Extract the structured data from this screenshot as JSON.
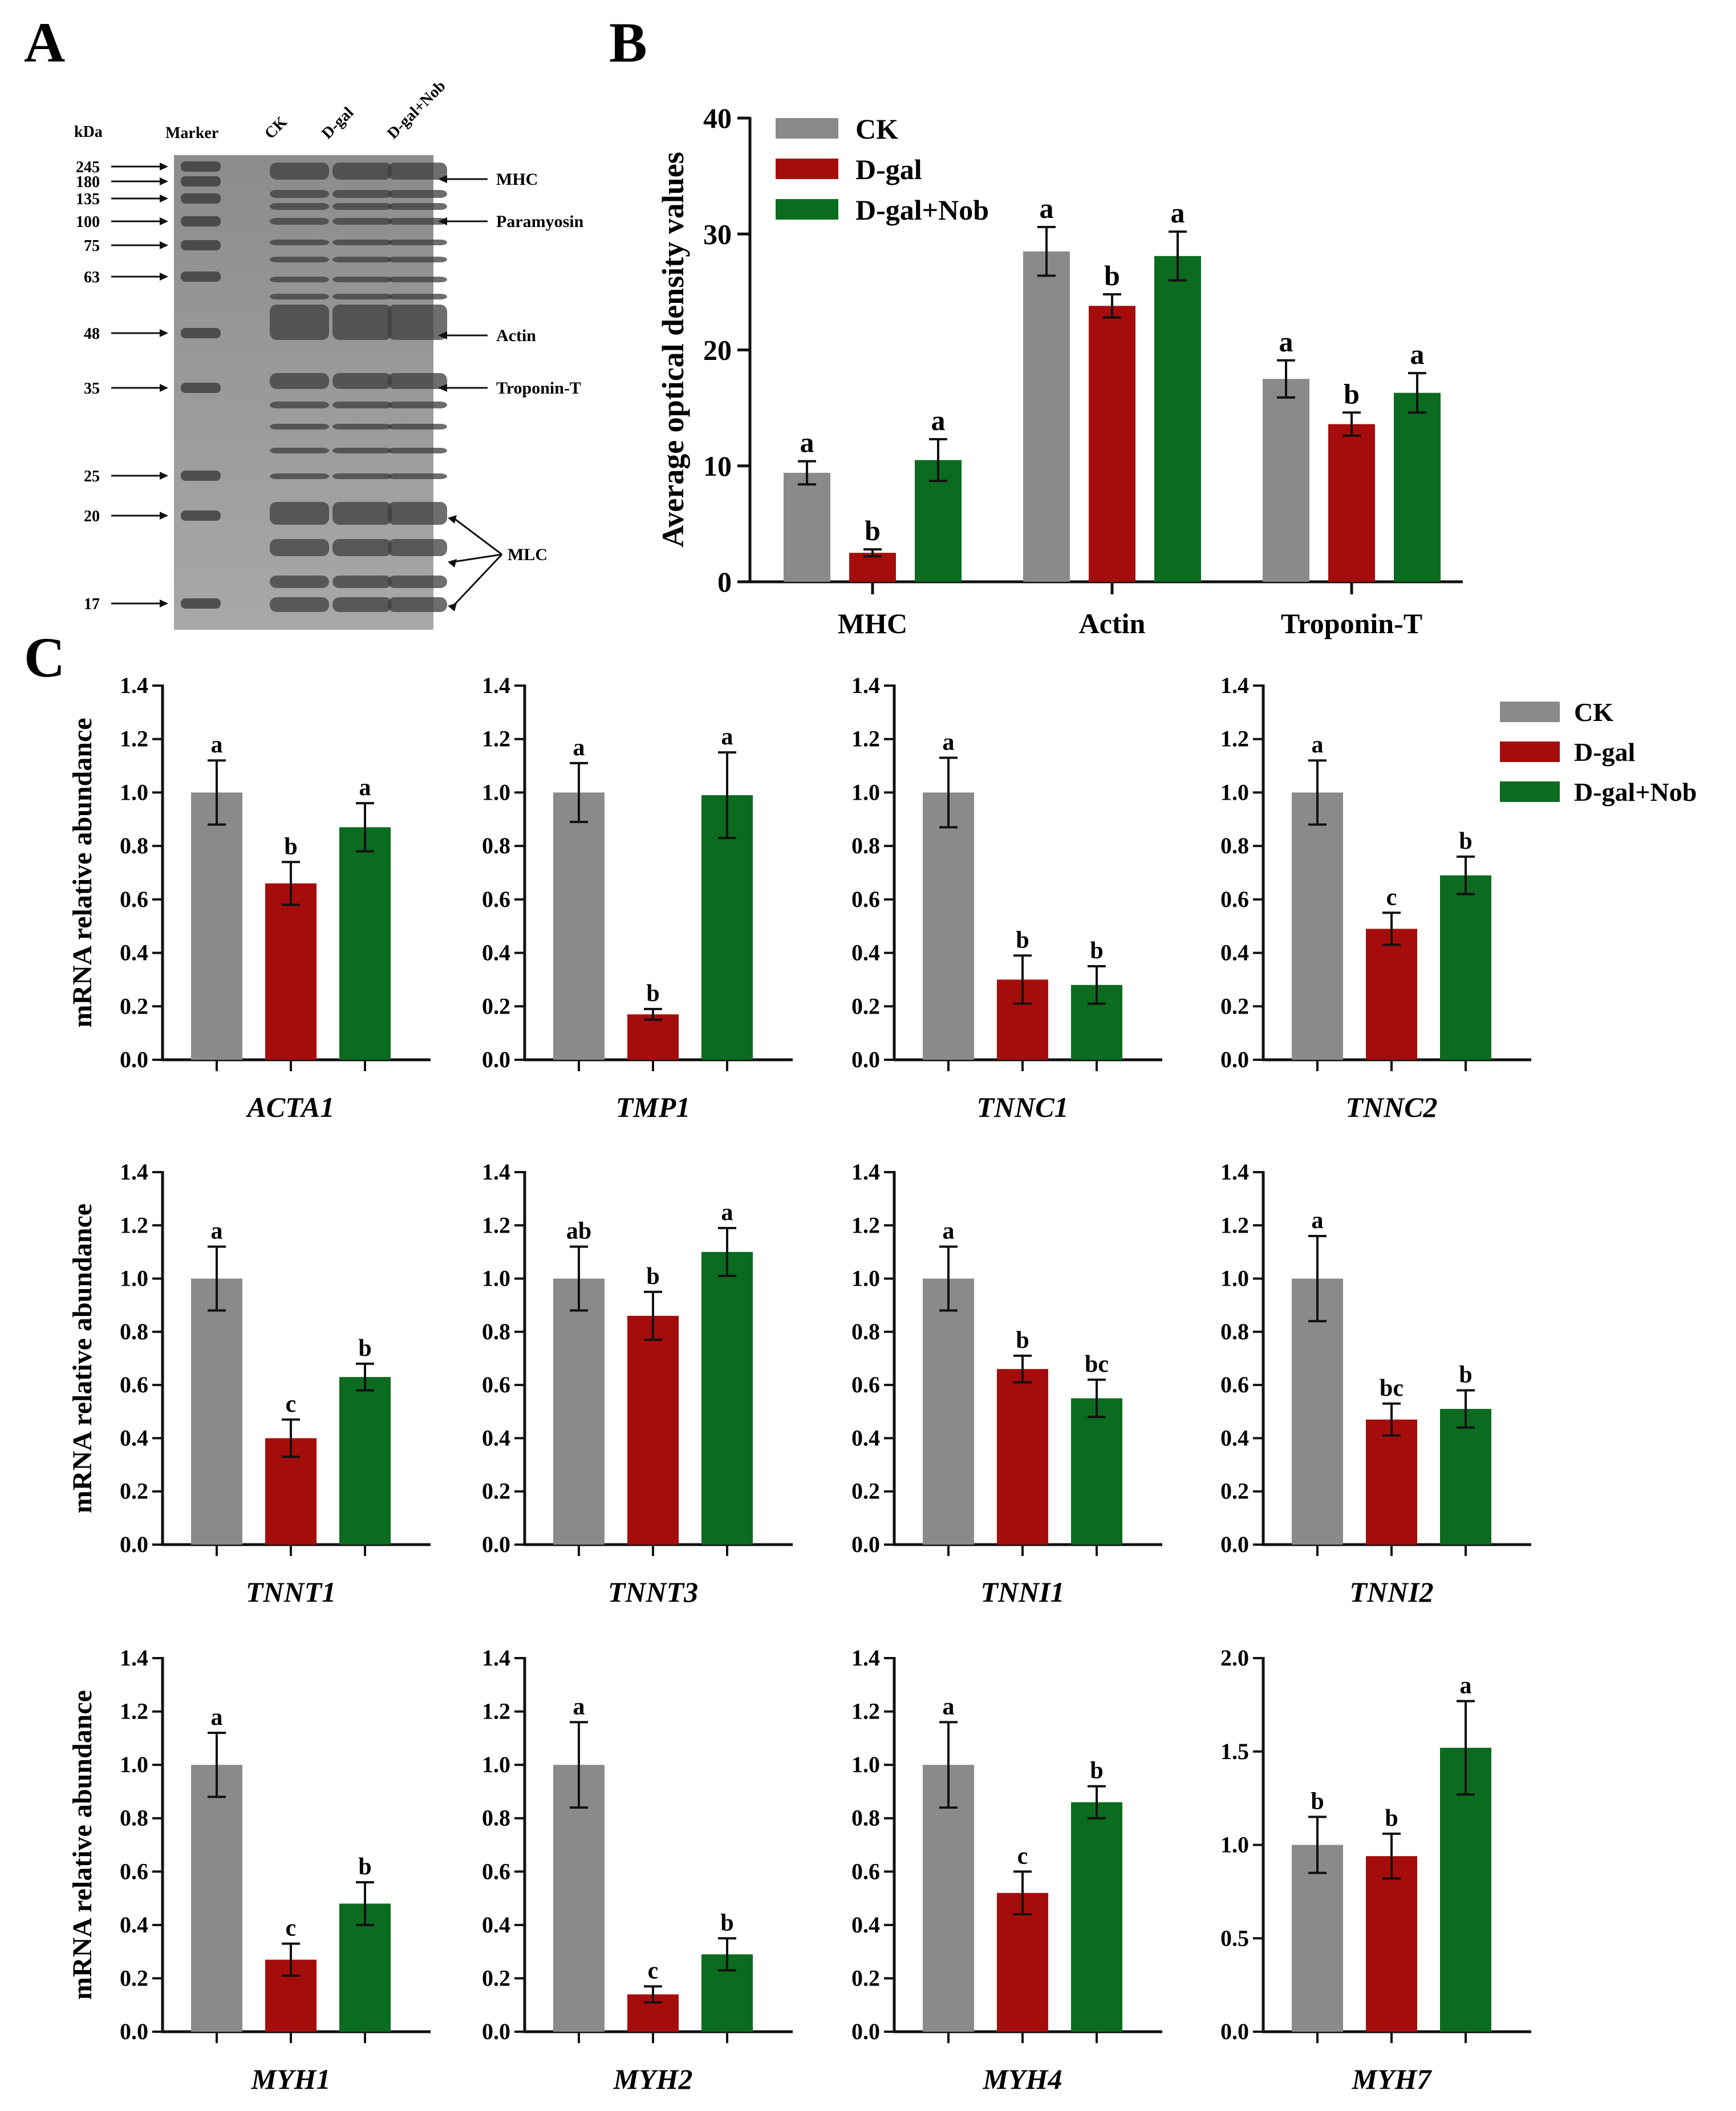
{
  "figure": {
    "panel_labels": {
      "a": "A",
      "b": "B",
      "c": "C"
    },
    "colors": {
      "ck": "#8a8a8a",
      "dgal": "#a50d0d",
      "nob": "#0b6b1f",
      "axis": "#111111"
    },
    "groups": [
      "CK",
      "D-gal",
      "D-gal+Nob"
    ]
  },
  "gel": {
    "header": [
      "kDa",
      "Marker",
      "CK",
      "D-gal",
      "D-gal+Nob"
    ],
    "marker_kda": [
      "245",
      "180",
      "135",
      "100",
      "75",
      "63",
      "48",
      "35",
      "25",
      "20",
      "17"
    ],
    "bands": [
      "MHC",
      "Paramyosin",
      "Actin",
      "Troponin-T",
      "MLC"
    ]
  },
  "chart_data": [
    {
      "panel": "B",
      "type": "bar",
      "ylabel": "Average optical density values",
      "ylim": [
        0,
        40
      ],
      "yticks": [
        "0",
        "10",
        "20",
        "30",
        "40"
      ],
      "categories": [
        "MHC",
        "Actin",
        "Troponin-T"
      ],
      "series": [
        {
          "name": "CK",
          "values": [
            9.4,
            28.5,
            17.5
          ],
          "errors": [
            1.0,
            2.1,
            1.6
          ],
          "letters": [
            "a",
            "a",
            "a"
          ]
        },
        {
          "name": "D-gal",
          "values": [
            2.5,
            23.8,
            13.6
          ],
          "errors": [
            0.3,
            1.0,
            1.0
          ],
          "letters": [
            "b",
            "b",
            "b"
          ]
        },
        {
          "name": "D-gal+Nob",
          "values": [
            10.5,
            28.1,
            16.3
          ],
          "errors": [
            1.8,
            2.1,
            1.7
          ],
          "letters": [
            "a",
            "a",
            "a"
          ]
        }
      ]
    },
    {
      "panel": "C",
      "type": "bar",
      "gene": "ACTA1",
      "ylabel": "mRNA relative abundance",
      "ylim": [
        0,
        1.4
      ],
      "yticks": [
        "0.0",
        "0.2",
        "0.4",
        "0.6",
        "0.8",
        "1.0",
        "1.2",
        "1.4"
      ],
      "values": [
        1.0,
        0.66,
        0.87
      ],
      "errors": [
        0.12,
        0.08,
        0.09
      ],
      "letters": [
        "a",
        "b",
        "a"
      ]
    },
    {
      "panel": "C",
      "type": "bar",
      "gene": "TMP1",
      "ylabel": "",
      "ylim": [
        0,
        1.4
      ],
      "yticks": [
        "0.0",
        "0.2",
        "0.4",
        "0.6",
        "0.8",
        "1.0",
        "1.2",
        "1.4"
      ],
      "values": [
        1.0,
        0.17,
        0.99
      ],
      "errors": [
        0.11,
        0.02,
        0.16
      ],
      "letters": [
        "a",
        "b",
        "a"
      ]
    },
    {
      "panel": "C",
      "type": "bar",
      "gene": "TNNC1",
      "ylabel": "",
      "ylim": [
        0,
        1.4
      ],
      "yticks": [
        "0.0",
        "0.2",
        "0.4",
        "0.6",
        "0.8",
        "1.0",
        "1.2",
        "1.4"
      ],
      "values": [
        1.0,
        0.3,
        0.28
      ],
      "errors": [
        0.13,
        0.09,
        0.07
      ],
      "letters": [
        "a",
        "b",
        "b"
      ]
    },
    {
      "panel": "C",
      "type": "bar",
      "gene": "TNNC2",
      "ylabel": "",
      "ylim": [
        0,
        1.4
      ],
      "yticks": [
        "0.0",
        "0.2",
        "0.4",
        "0.6",
        "0.8",
        "1.0",
        "1.2",
        "1.4"
      ],
      "values": [
        1.0,
        0.49,
        0.69
      ],
      "errors": [
        0.12,
        0.06,
        0.07
      ],
      "letters": [
        "a",
        "c",
        "b"
      ]
    },
    {
      "panel": "C",
      "type": "bar",
      "gene": "TNNT1",
      "ylabel": "mRNA relative abundance",
      "ylim": [
        0,
        1.4
      ],
      "yticks": [
        "0.0",
        "0.2",
        "0.4",
        "0.6",
        "0.8",
        "1.0",
        "1.2",
        "1.4"
      ],
      "values": [
        1.0,
        0.4,
        0.63
      ],
      "errors": [
        0.12,
        0.07,
        0.05
      ],
      "letters": [
        "a",
        "c",
        "b"
      ]
    },
    {
      "panel": "C",
      "type": "bar",
      "gene": "TNNT3",
      "ylabel": "",
      "ylim": [
        0,
        1.4
      ],
      "yticks": [
        "0.0",
        "0.2",
        "0.4",
        "0.6",
        "0.8",
        "1.0",
        "1.2",
        "1.4"
      ],
      "values": [
        1.0,
        0.86,
        1.1
      ],
      "errors": [
        0.12,
        0.09,
        0.09
      ],
      "letters": [
        "ab",
        "b",
        "a"
      ]
    },
    {
      "panel": "C",
      "type": "bar",
      "gene": "TNNI1",
      "ylabel": "",
      "ylim": [
        0,
        1.4
      ],
      "yticks": [
        "0.0",
        "0.2",
        "0.4",
        "0.6",
        "0.8",
        "1.0",
        "1.2",
        "1.4"
      ],
      "values": [
        1.0,
        0.66,
        0.55
      ],
      "errors": [
        0.12,
        0.05,
        0.07
      ],
      "letters": [
        "a",
        "b",
        "bc"
      ]
    },
    {
      "panel": "C",
      "type": "bar",
      "gene": "TNNI2",
      "ylabel": "",
      "ylim": [
        0,
        1.4
      ],
      "yticks": [
        "0.0",
        "0.2",
        "0.4",
        "0.6",
        "0.8",
        "1.0",
        "1.2",
        "1.4"
      ],
      "values": [
        1.0,
        0.47,
        0.51
      ],
      "errors": [
        0.16,
        0.06,
        0.07
      ],
      "letters": [
        "a",
        "bc",
        "b"
      ]
    },
    {
      "panel": "C",
      "type": "bar",
      "gene": "MYH1",
      "ylabel": "mRNA relative abundance",
      "ylim": [
        0,
        1.4
      ],
      "yticks": [
        "0.0",
        "0.2",
        "0.4",
        "0.6",
        "0.8",
        "1.0",
        "1.2",
        "1.4"
      ],
      "values": [
        1.0,
        0.27,
        0.48
      ],
      "errors": [
        0.12,
        0.06,
        0.08
      ],
      "letters": [
        "a",
        "c",
        "b"
      ]
    },
    {
      "panel": "C",
      "type": "bar",
      "gene": "MYH2",
      "ylabel": "",
      "ylim": [
        0,
        1.4
      ],
      "yticks": [
        "0.0",
        "0.2",
        "0.4",
        "0.6",
        "0.8",
        "1.0",
        "1.2",
        "1.4"
      ],
      "values": [
        1.0,
        0.14,
        0.29
      ],
      "errors": [
        0.16,
        0.03,
        0.06
      ],
      "letters": [
        "a",
        "c",
        "b"
      ]
    },
    {
      "panel": "C",
      "type": "bar",
      "gene": "MYH4",
      "ylabel": "",
      "ylim": [
        0,
        1.4
      ],
      "yticks": [
        "0.0",
        "0.2",
        "0.4",
        "0.6",
        "0.8",
        "1.0",
        "1.2",
        "1.4"
      ],
      "values": [
        1.0,
        0.52,
        0.86
      ],
      "errors": [
        0.16,
        0.08,
        0.06
      ],
      "letters": [
        "a",
        "c",
        "b"
      ]
    },
    {
      "panel": "C",
      "type": "bar",
      "gene": "MYH7",
      "ylabel": "",
      "ylim": [
        0,
        2.0
      ],
      "yticks": [
        "0.0",
        "0.5",
        "1.0",
        "1.5",
        "2.0"
      ],
      "values": [
        1.0,
        0.94,
        1.52
      ],
      "errors": [
        0.15,
        0.12,
        0.25
      ],
      "letters": [
        "b",
        "b",
        "a"
      ]
    }
  ]
}
